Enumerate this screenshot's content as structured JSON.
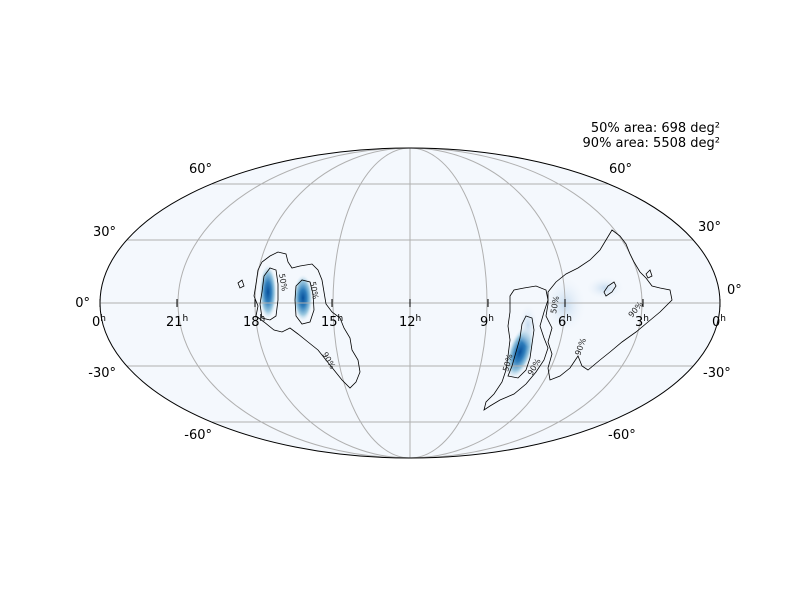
{
  "skymap": {
    "projection": "mollweide",
    "annotation": {
      "area_50": "50% area: 698 deg²",
      "area_90": "90% area: 5508 deg²"
    },
    "dec_ticks": [
      {
        "value": 60,
        "label": "60°"
      },
      {
        "value": 30,
        "label": "30°"
      },
      {
        "value": 0,
        "label": "0°"
      },
      {
        "value": -30,
        "label": "-30°"
      },
      {
        "value": -60,
        "label": "-60°"
      }
    ],
    "ra_ticks": [
      {
        "hours": 24,
        "label": "0",
        "sup": "h"
      },
      {
        "hours": 21,
        "label": "21",
        "sup": "h"
      },
      {
        "hours": 18,
        "label": "18",
        "sup": "h"
      },
      {
        "hours": 15,
        "label": "15",
        "sup": "h"
      },
      {
        "hours": 12,
        "label": "12",
        "sup": "h"
      },
      {
        "hours": 9,
        "label": "9",
        "sup": "h"
      },
      {
        "hours": 6,
        "label": "6",
        "sup": "h"
      },
      {
        "hours": 3,
        "label": "3",
        "sup": "h"
      },
      {
        "hours": 0,
        "label": "0",
        "sup": "h"
      }
    ],
    "contour_labels": [
      "50%",
      "90%"
    ],
    "colors": {
      "background": "#f4f8fd",
      "density_light": "#c6dbef",
      "density_mid": "#6baed6",
      "density_dark": "#08519c",
      "grid": "#b0b0b0",
      "contour": "#000000"
    }
  }
}
